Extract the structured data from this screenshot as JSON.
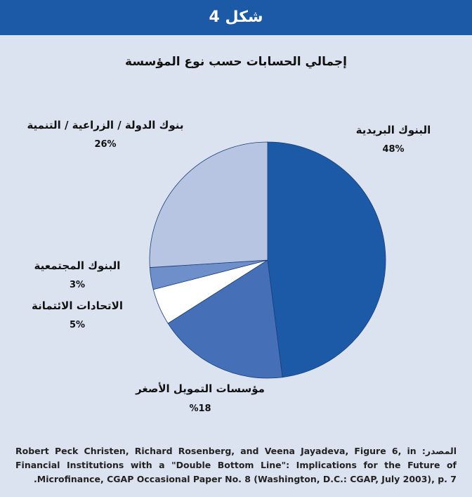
{
  "header": {
    "title": "شكل 4"
  },
  "chart_data": {
    "type": "pie",
    "title": "إجمالي الحسابات حسب نوع المؤسسة",
    "categories": [
      "البنوك البريدية",
      "مؤسسات التمويل الأصغر",
      "الاتحادات الائتمانة",
      "البنوك المجتمعية",
      "بنوك الدولة / الزراعية / التنمية"
    ],
    "values": [
      48,
      18,
      5,
      3,
      26
    ],
    "value_labels": [
      "48%",
      "18%",
      "5%",
      "3%",
      "26%"
    ],
    "colors": [
      "#1c59a6",
      "#4570b8",
      "#ffffff",
      "#6f8fca",
      "#b7c5e3"
    ]
  },
  "source": "المصدر: Robert Peck Christen, Richard Rosenberg, and Veena Jayadeva, Figure 6, in Financial Institutions with a \"Double Bottom Line\": Implications for the Future of Microfinance, CGAP Occasional Paper No. 8 (Washington, D.C.: CGAP, July 2003), p. 7."
}
